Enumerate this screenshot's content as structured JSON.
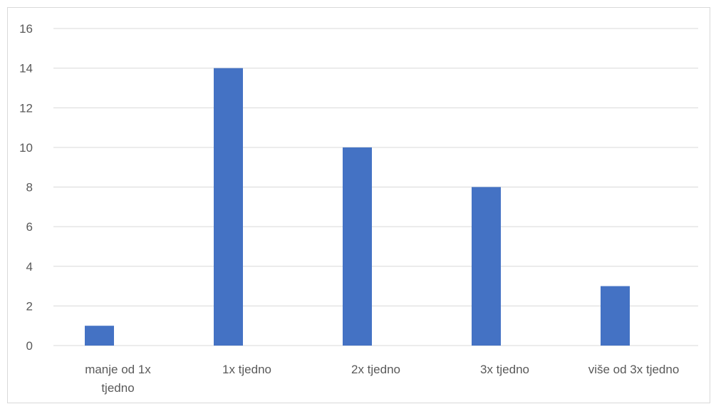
{
  "chart_data": {
    "type": "bar",
    "title": "",
    "xlabel": "",
    "ylabel": "",
    "categories": [
      [
        "manje od 1x",
        "tjedno"
      ],
      [
        "1x tjedno"
      ],
      [
        "2x tjedno"
      ],
      [
        "3x tjedno"
      ],
      [
        "više od 3x tjedno"
      ]
    ],
    "values": [
      1,
      14,
      10,
      8,
      3
    ],
    "ylim": [
      0,
      16
    ],
    "yticks": [
      0,
      2,
      4,
      6,
      8,
      10,
      12,
      14,
      16
    ],
    "grid": true,
    "legend": "none",
    "bar_color": "#4472C4",
    "grid_color": "#d9d9d9",
    "text_color": "#595959"
  }
}
